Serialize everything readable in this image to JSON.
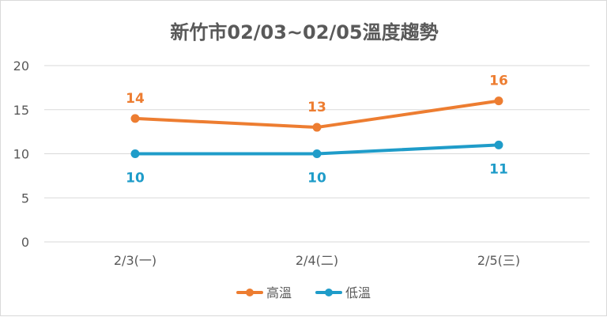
{
  "chart_data": {
    "type": "line",
    "title": "新竹市02/03~02/05溫度趨勢",
    "categories": [
      "2/3(一)",
      "2/4(二)",
      "2/5(三)"
    ],
    "yticks": [
      "0",
      "5",
      "10",
      "15",
      "20"
    ],
    "ylim": [
      0,
      20
    ],
    "grid": true,
    "legend_position": "bottom",
    "series": [
      {
        "name": "高溫",
        "values": [
          14,
          13,
          16
        ],
        "color": "#ED7D31",
        "labels": [
          "14",
          "13",
          "16"
        ],
        "label_position": "above"
      },
      {
        "name": "低溫",
        "values": [
          10,
          10,
          11
        ],
        "color": "#1F9CC9",
        "labels": [
          "10",
          "10",
          "11"
        ],
        "label_position": "below"
      }
    ]
  }
}
